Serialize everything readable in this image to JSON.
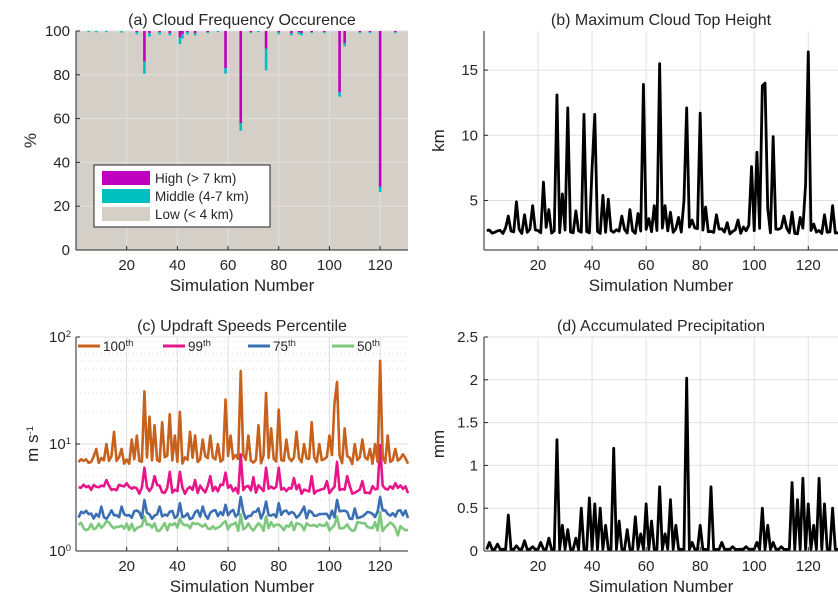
{
  "chart_data": [
    {
      "id": "a",
      "type": "bar",
      "title": "(a) Cloud Frequency Occurence",
      "xlabel": "Simulation Number",
      "ylabel": "%",
      "xlim": [
        0,
        131
      ],
      "ylim": [
        0,
        100
      ],
      "xticks": [
        20,
        40,
        60,
        80,
        100,
        120
      ],
      "yticks": [
        0,
        20,
        40,
        60,
        80,
        100
      ],
      "grid": true,
      "legend_position": "bottom-left",
      "stacked": true,
      "colors": {
        "high": "#bf00bf",
        "middle": "#00bfbf",
        "low": "#d4d0c8"
      },
      "series_names": [
        "High (> 7 km)",
        "Middle (4-7 km)",
        "Low (< 4 km)"
      ],
      "bars": [
        {
          "x": 5,
          "high": 0.0,
          "middle": 0.5
        },
        {
          "x": 8,
          "high": 0.0,
          "middle": 0.6
        },
        {
          "x": 12,
          "high": 0.0,
          "middle": 0.5
        },
        {
          "x": 18,
          "high": 0.0,
          "middle": 0.7
        },
        {
          "x": 24,
          "high": 0.5,
          "middle": 1.0
        },
        {
          "x": 27,
          "high": 14,
          "middle": 5.5
        },
        {
          "x": 29,
          "high": 1.0,
          "middle": 1.5
        },
        {
          "x": 33,
          "high": 0.5,
          "middle": 1.0
        },
        {
          "x": 37,
          "high": 1.0,
          "middle": 1.0
        },
        {
          "x": 41,
          "high": 3.0,
          "middle": 3.0
        },
        {
          "x": 42,
          "high": 1.5,
          "middle": 2.0
        },
        {
          "x": 44,
          "high": 0.5,
          "middle": 1.0
        },
        {
          "x": 47,
          "high": 1.0,
          "middle": 1.0
        },
        {
          "x": 52,
          "high": 0.5,
          "middle": 0.5
        },
        {
          "x": 56,
          "high": 0.0,
          "middle": 0.5
        },
        {
          "x": 59,
          "high": 17,
          "middle": 2.5
        },
        {
          "x": 65,
          "high": 42,
          "middle": 3.5
        },
        {
          "x": 69,
          "high": 0.5,
          "middle": 0.5
        },
        {
          "x": 72,
          "high": 0.0,
          "middle": 0.5
        },
        {
          "x": 75,
          "high": 8,
          "middle": 10
        },
        {
          "x": 80,
          "high": 0.5,
          "middle": 1.0
        },
        {
          "x": 85,
          "high": 1.0,
          "middle": 1.0
        },
        {
          "x": 88,
          "high": 0.5,
          "middle": 1.0
        },
        {
          "x": 89,
          "high": 1.0,
          "middle": 1.0
        },
        {
          "x": 93,
          "high": 0.5,
          "middle": 0.5
        },
        {
          "x": 98,
          "high": 0.5,
          "middle": 0.5
        },
        {
          "x": 104,
          "high": 28,
          "middle": 2.0
        },
        {
          "x": 106,
          "high": 5.5,
          "middle": 1.5
        },
        {
          "x": 112,
          "high": 0.5,
          "middle": 0.5
        },
        {
          "x": 116,
          "high": 0.5,
          "middle": 0.5
        },
        {
          "x": 120,
          "high": 71,
          "middle": 2.5
        },
        {
          "x": 126,
          "high": 0.5,
          "middle": 0.5
        }
      ]
    },
    {
      "id": "b",
      "type": "line",
      "title": "(b) Maximum Cloud Top Height",
      "xlabel": "Simulation Number",
      "ylabel": "km",
      "xlim": [
        0,
        131
      ],
      "ylim": [
        1.2,
        18
      ],
      "xticks": [
        20,
        40,
        60,
        80,
        100,
        120
      ],
      "yticks": [
        5,
        10,
        15
      ],
      "grid": true,
      "color": "#000000",
      "spikes": [
        [
          9,
          3.8
        ],
        [
          12,
          4.9
        ],
        [
          15,
          3.9
        ],
        [
          18,
          4.6
        ],
        [
          22,
          6.4
        ],
        [
          24,
          4.3
        ],
        [
          27,
          13.1
        ],
        [
          29,
          5.5
        ],
        [
          31,
          12.1
        ],
        [
          34,
          4.2
        ],
        [
          37,
          11.6
        ],
        [
          40,
          7.5
        ],
        [
          41,
          11.6
        ],
        [
          44,
          5.4
        ],
        [
          46,
          5.1
        ],
        [
          51,
          3.8
        ],
        [
          54,
          4.3
        ],
        [
          57,
          4.0
        ],
        [
          59,
          13.9
        ],
        [
          61,
          3.6
        ],
        [
          63,
          4.6
        ],
        [
          65,
          15.5
        ],
        [
          67,
          4.6
        ],
        [
          69,
          4.1
        ],
        [
          72,
          3.7
        ],
        [
          74,
          5.0
        ],
        [
          75,
          12.1
        ],
        [
          77,
          3.5
        ],
        [
          80,
          11.7
        ],
        [
          82,
          4.5
        ],
        [
          86,
          3.9
        ],
        [
          90,
          3.3
        ],
        [
          94,
          3.5
        ],
        [
          98,
          3.1
        ],
        [
          99,
          7.6
        ],
        [
          101,
          8.7
        ],
        [
          103,
          13.8
        ],
        [
          104,
          14.0
        ],
        [
          105,
          4.4
        ],
        [
          107,
          9.9
        ],
        [
          111,
          3.8
        ],
        [
          114,
          4.1
        ],
        [
          117,
          3.7
        ],
        [
          119,
          6.2
        ],
        [
          120,
          16.4
        ],
        [
          122,
          3.2
        ],
        [
          126,
          3.9
        ],
        [
          129,
          4.6
        ]
      ]
    },
    {
      "id": "c",
      "type": "line",
      "title": "(c) Updraft Speeds Percentile",
      "xlabel": "Simulation Number",
      "ylabel": "m s",
      "ylabel_sup": "-1",
      "yscale": "log",
      "xlim": [
        0,
        131
      ],
      "ylim": [
        1,
        100
      ],
      "xticks": [
        20,
        40,
        60,
        80,
        100,
        120
      ],
      "ytick_labels": [
        {
          "v": 1,
          "base": "10",
          "sup": "0"
        },
        {
          "v": 10,
          "base": "10",
          "sup": "1"
        },
        {
          "v": 100,
          "base": "10",
          "sup": "2"
        }
      ],
      "grid": true,
      "legend_position": "top",
      "series": [
        {
          "name": "100",
          "name_sup": "th",
          "color": "#c8611c",
          "base": 7.2,
          "spikes": [
            [
              8,
              9
            ],
            [
              12,
              10
            ],
            [
              15,
              13
            ],
            [
              18,
              9
            ],
            [
              22,
              11
            ],
            [
              24,
              12
            ],
            [
              27,
              31
            ],
            [
              29,
              18
            ],
            [
              31,
              15
            ],
            [
              34,
              16
            ],
            [
              37,
              19
            ],
            [
              39,
              12
            ],
            [
              41,
              20
            ],
            [
              45,
              13
            ],
            [
              47,
              12
            ],
            [
              50,
              11
            ],
            [
              53,
              12
            ],
            [
              56,
              10
            ],
            [
              59,
              26
            ],
            [
              61,
              12
            ],
            [
              65,
              48
            ],
            [
              68,
              12
            ],
            [
              72,
              15
            ],
            [
              75,
              30
            ],
            [
              77,
              14
            ],
            [
              80,
              21
            ],
            [
              83,
              11
            ],
            [
              87,
              13
            ],
            [
              90,
              10
            ],
            [
              93,
              16
            ],
            [
              96,
              10
            ],
            [
              100,
              12
            ],
            [
              102,
              24
            ],
            [
              103,
              38
            ],
            [
              106,
              14
            ],
            [
              110,
              10
            ],
            [
              113,
              11
            ],
            [
              116,
              9
            ],
            [
              118,
              10
            ],
            [
              120,
              60
            ],
            [
              123,
              12
            ],
            [
              126,
              9
            ],
            [
              129,
              8
            ]
          ]
        },
        {
          "name": "99",
          "name_sup": "th",
          "color": "#e8158a",
          "base": 3.8,
          "spikes": [
            [
              12,
              4.6
            ],
            [
              20,
              4.3
            ],
            [
              27,
              6.0
            ],
            [
              31,
              5.0
            ],
            [
              37,
              5.5
            ],
            [
              41,
              5.5
            ],
            [
              47,
              4.6
            ],
            [
              53,
              5.0
            ],
            [
              59,
              5.4
            ],
            [
              65,
              8.0
            ],
            [
              70,
              4.9
            ],
            [
              75,
              6.0
            ],
            [
              80,
              6.0
            ],
            [
              86,
              4.8
            ],
            [
              93,
              5.0
            ],
            [
              99,
              4.5
            ],
            [
              103,
              6.8
            ],
            [
              107,
              5.0
            ],
            [
              113,
              4.5
            ],
            [
              120,
              9.8
            ],
            [
              126,
              4.3
            ]
          ]
        },
        {
          "name": "75",
          "name_sup": "th",
          "color": "#3a6fb3",
          "base": 2.2,
          "spikes": [
            [
              10,
              2.6
            ],
            [
              18,
              2.6
            ],
            [
              27,
              3.0
            ],
            [
              33,
              2.6
            ],
            [
              41,
              2.8
            ],
            [
              50,
              2.6
            ],
            [
              59,
              2.7
            ],
            [
              65,
              3.2
            ],
            [
              72,
              2.5
            ],
            [
              75,
              2.9
            ],
            [
              80,
              2.8
            ],
            [
              90,
              2.6
            ],
            [
              103,
              3.0
            ],
            [
              110,
              2.5
            ],
            [
              120,
              3.2
            ],
            [
              128,
              2.4
            ]
          ]
        },
        {
          "name": "50",
          "name_sup": "th",
          "color": "#7ec87e",
          "base": 1.7,
          "spikes": [
            [
              12,
              1.9
            ],
            [
              27,
              2.1
            ],
            [
              41,
              2.0
            ],
            [
              59,
              1.9
            ],
            [
              65,
              2.2
            ],
            [
              75,
              2.1
            ],
            [
              103,
              2.1
            ],
            [
              120,
              2.3
            ],
            [
              127,
              1.4
            ]
          ]
        }
      ]
    },
    {
      "id": "d",
      "type": "line",
      "title": "(d) Accumulated Precipitation",
      "xlabel": "Simulation Number",
      "ylabel": "mm",
      "xlim": [
        0,
        131
      ],
      "ylim": [
        0,
        2.5
      ],
      "xticks": [
        20,
        40,
        60,
        80,
        100,
        120
      ],
      "yticks": [
        0,
        0.5,
        1,
        1.5,
        2,
        2.5
      ],
      "grid": true,
      "color": "#000000",
      "spikes": [
        [
          2,
          0.1
        ],
        [
          5,
          0.08
        ],
        [
          9,
          0.42
        ],
        [
          12,
          0.06
        ],
        [
          15,
          0.12
        ],
        [
          18,
          0.05
        ],
        [
          21,
          0.1
        ],
        [
          24,
          0.15
        ],
        [
          27,
          1.3
        ],
        [
          29,
          0.3
        ],
        [
          31,
          0.25
        ],
        [
          34,
          0.15
        ],
        [
          36,
          0.5
        ],
        [
          39,
          0.62
        ],
        [
          41,
          0.55
        ],
        [
          43,
          0.5
        ],
        [
          45,
          0.3
        ],
        [
          48,
          1.2
        ],
        [
          50,
          0.35
        ],
        [
          53,
          0.25
        ],
        [
          56,
          0.4
        ],
        [
          58,
          0.2
        ],
        [
          60,
          0.55
        ],
        [
          62,
          0.35
        ],
        [
          65,
          0.75
        ],
        [
          67,
          0.2
        ],
        [
          69,
          0.6
        ],
        [
          71,
          0.3
        ],
        [
          75,
          2.02
        ],
        [
          77,
          0.1
        ],
        [
          80,
          0.3
        ],
        [
          84,
          0.75
        ],
        [
          88,
          0.1
        ],
        [
          92,
          0.05
        ],
        [
          97,
          0.05
        ],
        [
          101,
          0.1
        ],
        [
          103,
          0.5
        ],
        [
          105,
          0.3
        ],
        [
          107,
          0.1
        ],
        [
          110,
          0.05
        ],
        [
          114,
          0.8
        ],
        [
          116,
          0.6
        ],
        [
          118,
          0.85
        ],
        [
          120,
          0.55
        ],
        [
          122,
          0.3
        ],
        [
          124,
          0.85
        ],
        [
          126,
          0.55
        ],
        [
          129,
          0.5
        ]
      ]
    }
  ]
}
